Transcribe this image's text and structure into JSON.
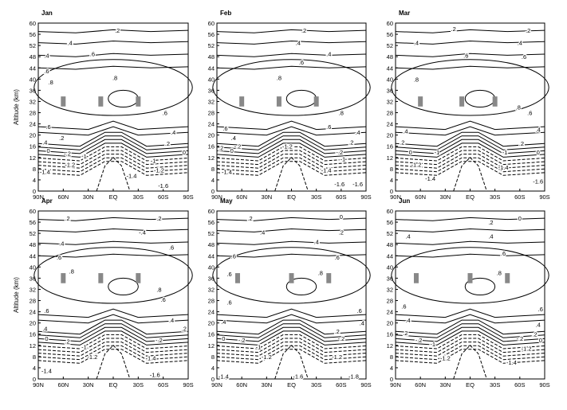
{
  "chart_data": {
    "type": "contour",
    "ylabel": "Altitude (km)",
    "x_ticks": [
      "90N",
      "60N",
      "30N",
      "EQ",
      "30S",
      "60S",
      "90S"
    ],
    "y_ticks": [
      "0",
      "4",
      "8",
      "12",
      "16",
      "20",
      "24",
      "28",
      "32",
      "36",
      "40",
      "44",
      "48",
      "52",
      "56",
      "60"
    ],
    "ylim": [
      0,
      60
    ],
    "xlim": [
      -90,
      90
    ],
    "grid": false,
    "marker_fill": "#888888",
    "panels": [
      {
        "title": "Jan",
        "marker_y": 32,
        "marker_x": [
          -60,
          -15,
          30
        ],
        "contour_labels": [
          {
            "x": 5,
            "y": 57.5,
            "text": ".2"
          },
          {
            "x": -52,
            "y": 53,
            "text": ".4"
          },
          {
            "x": -80,
            "y": 48.5,
            "text": ".4"
          },
          {
            "x": -25,
            "y": 49,
            "text": ".6"
          },
          {
            "x": -80,
            "y": 43,
            "text": ".6"
          },
          {
            "x": -75,
            "y": 39,
            "text": ".8"
          },
          {
            "x": 2,
            "y": 40.5,
            "text": ".8"
          },
          {
            "x": 62,
            "y": 28,
            "text": ".6"
          },
          {
            "x": -78,
            "y": 23,
            "text": ".6"
          },
          {
            "x": 72,
            "y": 21,
            "text": ".4"
          },
          {
            "x": -82,
            "y": 17.5,
            "text": ".4"
          },
          {
            "x": -62,
            "y": 19,
            "text": ".2"
          },
          {
            "x": 65,
            "y": 17,
            "text": ".2"
          },
          {
            "x": -78,
            "y": 14.5,
            "text": "0"
          },
          {
            "x": 85,
            "y": 14,
            "text": "0"
          },
          {
            "x": -55,
            "y": 13.5,
            "text": "-.2"
          },
          {
            "x": -35,
            "y": 12.5,
            "text": "-1"
          },
          {
            "x": 48,
            "y": 11,
            "text": "-1"
          },
          {
            "x": -52,
            "y": 9.5,
            "text": "-1.2"
          },
          {
            "x": 55,
            "y": 7.5,
            "text": "-1.2"
          },
          {
            "x": -82,
            "y": 7,
            "text": "-1.4"
          },
          {
            "x": 22,
            "y": 5.5,
            "text": "-1.4"
          },
          {
            "x": 60,
            "y": 2,
            "text": "-1.6"
          }
        ]
      },
      {
        "title": "Feb",
        "marker_y": 32,
        "marker_x": [
          -60,
          -15,
          30
        ],
        "contour_labels": [
          {
            "x": 15,
            "y": 57.5,
            "text": ".2"
          },
          {
            "x": 8,
            "y": 53,
            "text": ".4"
          },
          {
            "x": 45,
            "y": 49,
            "text": ".4"
          },
          {
            "x": 12,
            "y": 46,
            "text": ".6"
          },
          {
            "x": -15,
            "y": 40.5,
            "text": ".8"
          },
          {
            "x": 60,
            "y": 28,
            "text": ".8"
          },
          {
            "x": 45,
            "y": 23,
            "text": ".6"
          },
          {
            "x": -80,
            "y": 22.5,
            "text": ".6"
          },
          {
            "x": -70,
            "y": 19,
            "text": ".4"
          },
          {
            "x": 80,
            "y": 21,
            "text": ".4"
          },
          {
            "x": -85,
            "y": 15.5,
            "text": ".2"
          },
          {
            "x": -65,
            "y": 16,
            "text": "-.2"
          },
          {
            "x": 72,
            "y": 17.5,
            "text": ".2"
          },
          {
            "x": 58,
            "y": 14,
            "text": "-.2"
          },
          {
            "x": -72,
            "y": 14.5,
            "text": "0"
          },
          {
            "x": -5,
            "y": 16,
            "text": "-1.2"
          },
          {
            "x": 62,
            "y": 11.5,
            "text": "-1"
          },
          {
            "x": -78,
            "y": 7,
            "text": "-1.4"
          },
          {
            "x": 42,
            "y": 7.5,
            "text": "-1.4"
          },
          {
            "x": 58,
            "y": 2.5,
            "text": "-1.6"
          },
          {
            "x": 80,
            "y": 2.5,
            "text": "-1.6"
          }
        ]
      },
      {
        "title": "Mar",
        "marker_y": 32,
        "marker_x": [
          -60,
          -10,
          30
        ],
        "contour_labels": [
          {
            "x": -20,
            "y": 58,
            "text": ".2"
          },
          {
            "x": 70,
            "y": 57.5,
            "text": ".2"
          },
          {
            "x": -65,
            "y": 53,
            "text": ".4"
          },
          {
            "x": 60,
            "y": 53,
            "text": ".4"
          },
          {
            "x": 65,
            "y": 48,
            "text": ".6"
          },
          {
            "x": -5,
            "y": 48.5,
            "text": ".6"
          },
          {
            "x": -65,
            "y": 40,
            "text": ".8"
          },
          {
            "x": 58,
            "y": 30,
            "text": ".8"
          },
          {
            "x": 72,
            "y": 28,
            "text": ".6"
          },
          {
            "x": -78,
            "y": 21.5,
            "text": ".4"
          },
          {
            "x": 82,
            "y": 22,
            "text": ".4"
          },
          {
            "x": -82,
            "y": 17.5,
            "text": ".2"
          },
          {
            "x": 62,
            "y": 17,
            "text": ".2"
          },
          {
            "x": -72,
            "y": 14,
            "text": "0"
          },
          {
            "x": 82,
            "y": 14,
            "text": "0"
          },
          {
            "x": -40,
            "y": 14,
            "text": "-1"
          },
          {
            "x": 42,
            "y": 14,
            "text": "-1"
          },
          {
            "x": -65,
            "y": 9.5,
            "text": "-1.2"
          },
          {
            "x": 40,
            "y": 8.5,
            "text": "-1.4"
          },
          {
            "x": -48,
            "y": 4.5,
            "text": "-1.4"
          },
          {
            "x": 82,
            "y": 3.5,
            "text": "-1.6"
          }
        ]
      },
      {
        "title": "Apr",
        "marker_y": 36,
        "marker_x": [
          -60,
          -15,
          30
        ],
        "contour_labels": [
          {
            "x": -55,
            "y": 57.5,
            "text": ".2"
          },
          {
            "x": 55,
            "y": 57.5,
            "text": ".2"
          },
          {
            "x": 35,
            "y": 52.5,
            "text": "-.4"
          },
          {
            "x": -62,
            "y": 48.5,
            "text": ".4"
          },
          {
            "x": 70,
            "y": 47,
            "text": ".6"
          },
          {
            "x": -65,
            "y": 43.5,
            "text": ".6"
          },
          {
            "x": -50,
            "y": 38.5,
            "text": ".8"
          },
          {
            "x": 55,
            "y": 32,
            "text": ".8"
          },
          {
            "x": 60,
            "y": 28.5,
            "text": ".6"
          },
          {
            "x": -80,
            "y": 24.5,
            "text": ".6"
          },
          {
            "x": 70,
            "y": 21,
            "text": ".4"
          },
          {
            "x": -82,
            "y": 18,
            "text": ".4"
          },
          {
            "x": 85,
            "y": 18,
            "text": ".2"
          },
          {
            "x": -80,
            "y": 14.5,
            "text": "0"
          },
          {
            "x": -55,
            "y": 13.5,
            "text": ".2"
          },
          {
            "x": 55,
            "y": 14,
            "text": "-.2"
          },
          {
            "x": -35,
            "y": 11.5,
            "text": "-1"
          },
          {
            "x": -25,
            "y": 8,
            "text": "-1.2"
          },
          {
            "x": 45,
            "y": 7.5,
            "text": "-1.4"
          },
          {
            "x": -80,
            "y": 3,
            "text": "-1.4"
          },
          {
            "x": 50,
            "y": 1.5,
            "text": "-1.6"
          }
        ]
      },
      {
        "title": "May",
        "marker_y": 36,
        "marker_x": [
          -65,
          0,
          45
        ],
        "contour_labels": [
          {
            "x": -50,
            "y": 57.5,
            "text": ".2"
          },
          {
            "x": 60,
            "y": 58,
            "text": "0"
          },
          {
            "x": -35,
            "y": 52.5,
            "text": ".4"
          },
          {
            "x": 60,
            "y": 52.5,
            "text": ".2"
          },
          {
            "x": 30,
            "y": 49,
            "text": ".4"
          },
          {
            "x": -70,
            "y": 44,
            "text": ".6"
          },
          {
            "x": 55,
            "y": 43.5,
            "text": ".6"
          },
          {
            "x": -75,
            "y": 37.5,
            "text": ".6"
          },
          {
            "x": 35,
            "y": 38,
            "text": ".8"
          },
          {
            "x": -75,
            "y": 27.5,
            "text": ".6"
          },
          {
            "x": 82,
            "y": 24.5,
            "text": ".6"
          },
          {
            "x": -82,
            "y": 20.5,
            "text": ".4"
          },
          {
            "x": 85,
            "y": 20,
            "text": ".4"
          },
          {
            "x": -82,
            "y": 14.5,
            "text": "0"
          },
          {
            "x": -60,
            "y": 14,
            "text": "-.2"
          },
          {
            "x": 55,
            "y": 17,
            "text": ".2"
          },
          {
            "x": 60,
            "y": 14.5,
            "text": "-.2"
          },
          {
            "x": -40,
            "y": 11.5,
            "text": "-1"
          },
          {
            "x": -30,
            "y": 8,
            "text": "-1.2"
          },
          {
            "x": 55,
            "y": 8,
            "text": "-1.2"
          },
          {
            "x": -82,
            "y": 1,
            "text": "-1.4"
          },
          {
            "x": 8,
            "y": 1,
            "text": "-1.6"
          },
          {
            "x": 75,
            "y": 1,
            "text": "-1.8"
          }
        ]
      },
      {
        "title": "Jun",
        "marker_y": 36,
        "marker_x": [
          -65,
          0,
          45
        ],
        "contour_labels": [
          {
            "x": 25,
            "y": 56,
            "text": ".2"
          },
          {
            "x": 60,
            "y": 57.5,
            "text": "0"
          },
          {
            "x": -75,
            "y": 51,
            "text": ".4"
          },
          {
            "x": 25,
            "y": 51,
            "text": ".4"
          },
          {
            "x": 40,
            "y": 45,
            "text": ".6"
          },
          {
            "x": 35,
            "y": 38,
            "text": ".8"
          },
          {
            "x": -80,
            "y": 26,
            "text": ".6"
          },
          {
            "x": 85,
            "y": 25,
            "text": ".6"
          },
          {
            "x": -75,
            "y": 21,
            "text": ".4"
          },
          {
            "x": 82,
            "y": 19.5,
            "text": ".4"
          },
          {
            "x": -78,
            "y": 16.5,
            "text": ".2"
          },
          {
            "x": 78,
            "y": 16,
            "text": ".2"
          },
          {
            "x": 85,
            "y": 14,
            "text": "0"
          },
          {
            "x": -62,
            "y": 14,
            "text": "-.2"
          },
          {
            "x": 60,
            "y": 14.5,
            "text": "-.2"
          },
          {
            "x": -45,
            "y": 12.5,
            "text": "-1"
          },
          {
            "x": -30,
            "y": 7.5,
            "text": "-1.2"
          },
          {
            "x": 68,
            "y": 11,
            "text": "-1.2"
          },
          {
            "x": 50,
            "y": 6,
            "text": "-1.4"
          }
        ]
      }
    ]
  }
}
